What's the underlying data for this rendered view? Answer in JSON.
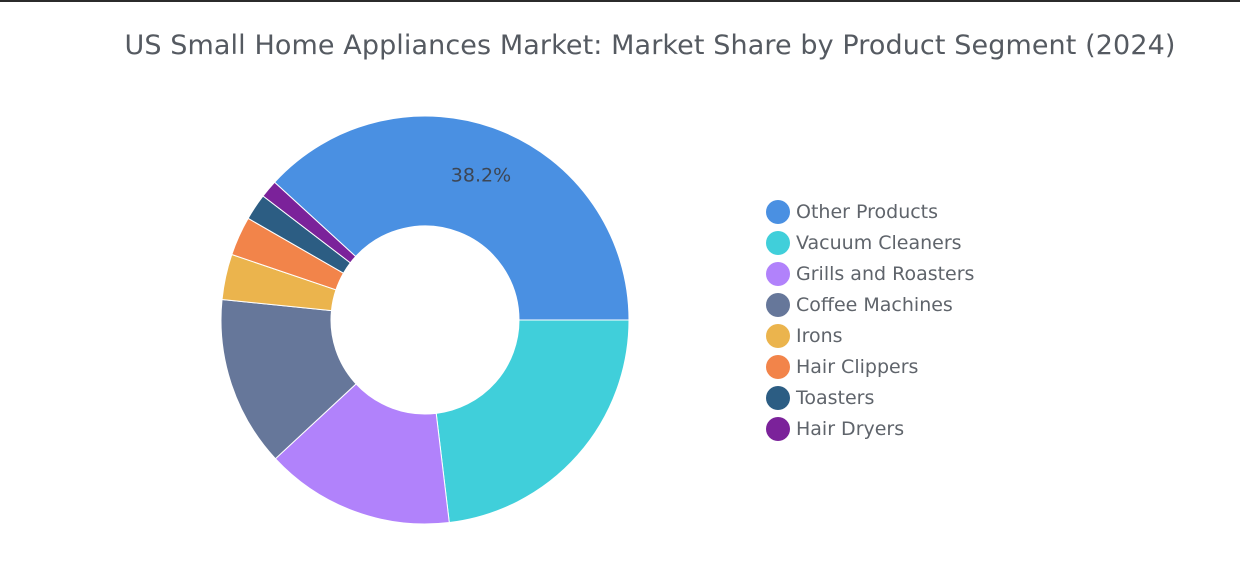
{
  "chart_data": {
    "type": "pie",
    "donut": true,
    "title": "US Small Home Appliances Market: Market Share by Product Segment (2024)",
    "legend_position": "right",
    "categories": [
      "Other Products",
      "Vacuum Cleaners",
      "Grills and Roasters",
      "Coffee Machines",
      "Irons",
      "Hair Clippers",
      "Toasters",
      "Hair Dryers"
    ],
    "values": [
      38.2,
      23.1,
      15.0,
      13.5,
      3.6,
      3.1,
      2.1,
      1.4
    ],
    "colors": [
      "#4A90E2",
      "#40CFDA",
      "#B182FB",
      "#66779A",
      "#EBB44D",
      "#F2844A",
      "#2C5D83",
      "#7B229A"
    ],
    "data_labels": [
      "38.2%",
      "",
      "",
      "",
      "",
      "",
      "",
      ""
    ]
  }
}
